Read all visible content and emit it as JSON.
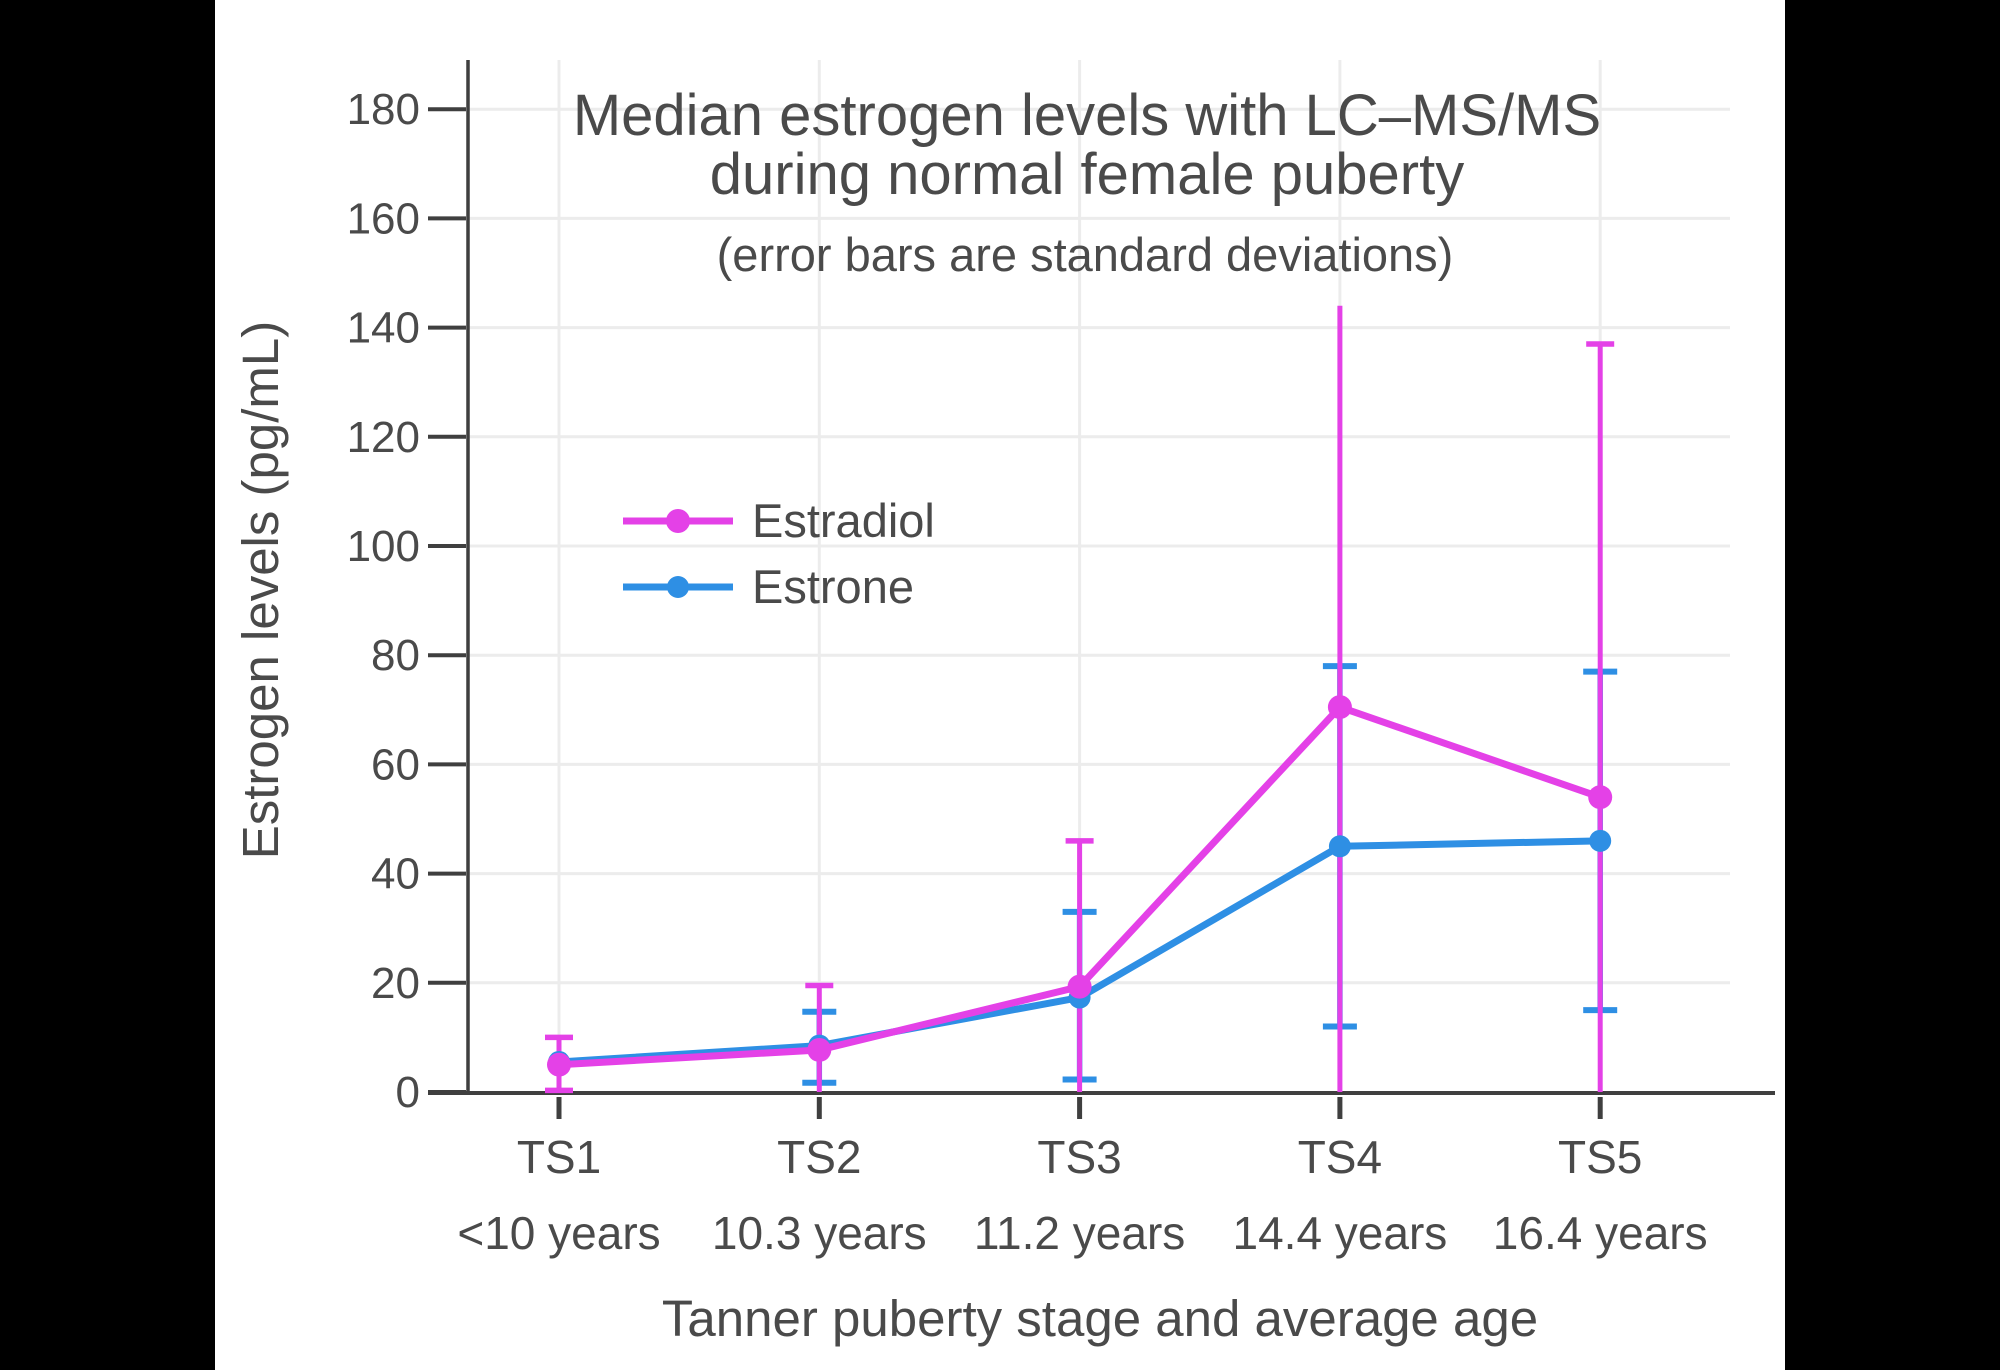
{
  "page": {
    "background": "#000000",
    "canvas_background": "#ffffff"
  },
  "chart_data": {
    "type": "line",
    "title": [
      "Median estrogen levels with LC–MS/MS",
      "during normal female puberty"
    ],
    "subtitle": "(error bars are standard deviations)",
    "xlabel": "Tanner puberty stage and average age",
    "ylabel": "Estrogen levels (pg/mL)",
    "x_categories": [
      "TS1",
      "TS2",
      "TS3",
      "TS4",
      "TS5"
    ],
    "x_ages": [
      "<10 years",
      "10.3 years",
      "11.2 years",
      "14.4 years",
      "16.4 years"
    ],
    "y_ticks": [
      0,
      20,
      40,
      60,
      80,
      100,
      120,
      140,
      160,
      180
    ],
    "ylim": [
      0,
      189
    ],
    "grid": true,
    "legend": {
      "position": "inside-upper-left",
      "entries": [
        "Estradiol",
        "Estrone"
      ]
    },
    "series": [
      {
        "name": "Estradiol",
        "color": "#e441e7",
        "values": [
          5,
          7.7,
          19.3,
          70.5,
          54
        ],
        "err_high": [
          10,
          19.5,
          46,
          144,
          137
        ],
        "err_high_cap": [
          true,
          true,
          true,
          false,
          true
        ],
        "err_low": [
          0.3,
          0,
          0,
          0,
          0
        ],
        "err_low_cap": [
          true,
          false,
          false,
          false,
          false
        ]
      },
      {
        "name": "Estrone",
        "color": "#2e8fe4",
        "values": [
          5.5,
          8.5,
          17.3,
          45,
          46
        ],
        "err_high": [
          null,
          14.7,
          33,
          78,
          77
        ],
        "err_high_cap": [
          false,
          true,
          true,
          true,
          true
        ],
        "err_low": [
          null,
          1.7,
          2.3,
          12,
          15
        ],
        "err_low_cap": [
          false,
          true,
          true,
          true,
          true
        ]
      }
    ],
    "style": {
      "text_color": "#4a4a4a",
      "axis_color": "#3f3f3f",
      "grid_color": "#ececec"
    }
  }
}
